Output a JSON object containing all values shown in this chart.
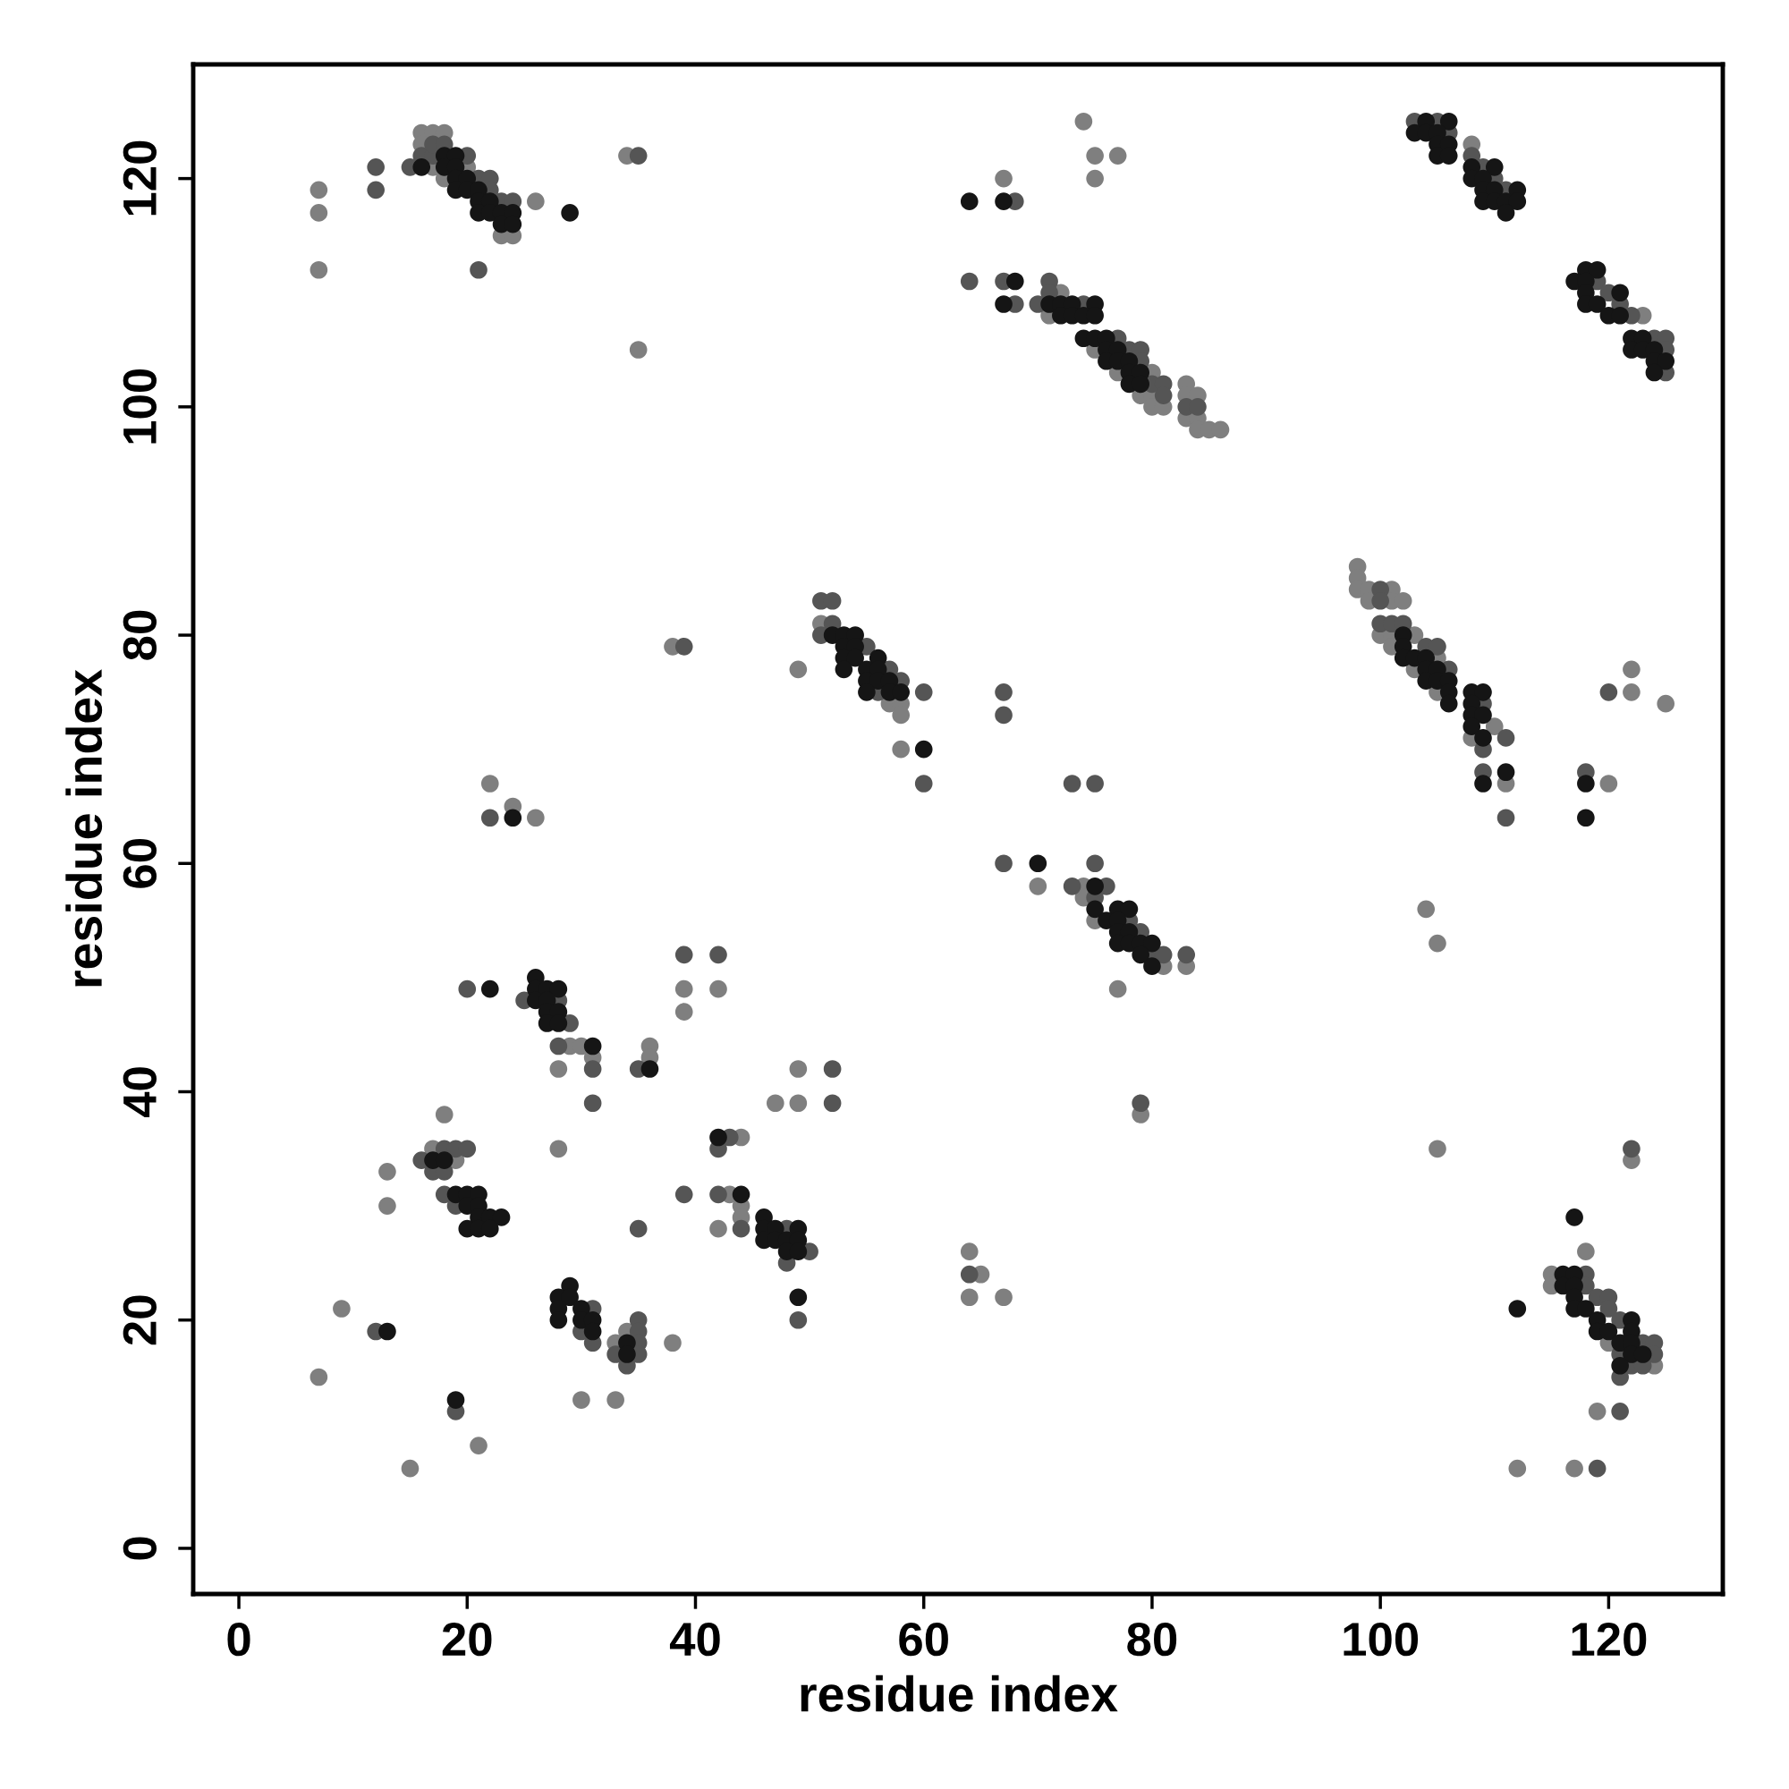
{
  "chart_data": {
    "type": "scatter",
    "xlabel": "residue index",
    "ylabel": "residue index",
    "xlim": [
      -4,
      130
    ],
    "ylim": [
      -4,
      130
    ],
    "xticks": [
      0,
      20,
      40,
      60,
      80,
      100,
      120
    ],
    "yticks": [
      0,
      20,
      40,
      60,
      80,
      100,
      120
    ],
    "marker": "circle",
    "series": [
      {
        "color": "#7f7f7f",
        "x": [
          7,
          7,
          7,
          16,
          17,
          18,
          16,
          17,
          20,
          18,
          23,
          24,
          26,
          34,
          35,
          74,
          75,
          77,
          75,
          67,
          72,
          71,
          75,
          77,
          80,
          83,
          79,
          80,
          83,
          84,
          80,
          81,
          83,
          84,
          84,
          85,
          86,
          108,
          123,
          98,
          98,
          98,
          99,
          101,
          99,
          101,
          102,
          100,
          101,
          103,
          101,
          105,
          103,
          105,
          110,
          108,
          111,
          122,
          122,
          125,
          120,
          104,
          105,
          51,
          49,
          57,
          58,
          58,
          58,
          38,
          22,
          24,
          26,
          70,
          74,
          74,
          75,
          81,
          83,
          77,
          39,
          42,
          39,
          29,
          30,
          31,
          28,
          36,
          36,
          49,
          47,
          49,
          18,
          28,
          17,
          19,
          13,
          13,
          44,
          43,
          44,
          44,
          42,
          34,
          33,
          38,
          9,
          7,
          30,
          33,
          21,
          15,
          64,
          65,
          64,
          67,
          79,
          105,
          122,
          118,
          115,
          115,
          120,
          124,
          119,
          112,
          117
        ],
        "values": [
          119,
          117,
          112,
          124,
          124,
          124,
          123,
          121,
          121,
          120,
          115,
          115,
          118,
          122,
          105,
          125,
          122,
          122,
          120,
          120,
          110,
          108,
          105,
          103,
          103,
          102,
          101,
          101,
          101,
          101,
          100,
          100,
          99,
          99,
          98,
          98,
          98,
          123,
          108,
          86,
          85,
          84,
          84,
          84,
          83,
          83,
          83,
          80,
          80,
          80,
          79,
          78,
          77,
          75,
          72,
          71,
          67,
          77,
          75,
          74,
          67,
          56,
          53,
          81,
          77,
          74,
          74,
          73,
          70,
          79,
          67,
          65,
          64,
          58,
          58,
          57,
          55,
          51,
          51,
          49,
          49,
          49,
          47,
          44,
          44,
          43,
          42,
          44,
          43,
          42,
          39,
          39,
          38,
          35,
          35,
          34,
          33,
          30,
          36,
          31,
          30,
          29,
          28,
          19,
          18,
          18,
          21,
          15,
          13,
          13,
          9,
          7,
          26,
          24,
          22,
          22,
          38,
          35,
          34,
          26,
          24,
          23,
          18,
          16,
          12,
          7,
          7
        ]
      },
      {
        "color": "#555555",
        "x": [
          12,
          12,
          15,
          16,
          17,
          20,
          17,
          18,
          21,
          22,
          22,
          23,
          24,
          21,
          35,
          68,
          64,
          67,
          71,
          71,
          68,
          70,
          74,
          77,
          78,
          79,
          79,
          80,
          81,
          81,
          83,
          84,
          103,
          105,
          106,
          108,
          109,
          110,
          111,
          119,
          120,
          121,
          122,
          124,
          125,
          125,
          125,
          100,
          100,
          100,
          101,
          102,
          104,
          105,
          106,
          109,
          111,
          109,
          109,
          111,
          120,
          118,
          51,
          52,
          52,
          51,
          55,
          57,
          58,
          56,
          60,
          60,
          39,
          67,
          67,
          22,
          73,
          75,
          67,
          75,
          73,
          76,
          75,
          78,
          79,
          80,
          81,
          83,
          39,
          42,
          20,
          25,
          28,
          29,
          28,
          31,
          31,
          35,
          52,
          52,
          18,
          19,
          20,
          16,
          17,
          18,
          18,
          19,
          43,
          42,
          39,
          42,
          44,
          35,
          48,
          50,
          48,
          49,
          31,
          30,
          31,
          35,
          35,
          35,
          33,
          35,
          34,
          12,
          19,
          64,
          79,
          122,
          118,
          118,
          119,
          120,
          120,
          121,
          123,
          124,
          121,
          124,
          122,
          123,
          121,
          121,
          119
        ],
        "values": [
          121,
          119,
          121,
          122,
          122,
          122,
          123,
          123,
          120,
          120,
          119,
          118,
          118,
          112,
          122,
          118,
          111,
          111,
          111,
          110,
          109,
          109,
          109,
          106,
          105,
          105,
          104,
          102,
          102,
          101,
          100,
          100,
          125,
          125,
          124,
          122,
          121,
          120,
          119,
          111,
          110,
          109,
          108,
          106,
          106,
          105,
          103,
          84,
          83,
          81,
          81,
          81,
          79,
          79,
          77,
          74,
          71,
          70,
          68,
          64,
          75,
          68,
          83,
          83,
          81,
          80,
          79,
          77,
          76,
          75,
          75,
          67,
          79,
          75,
          73,
          64,
          67,
          67,
          60,
          60,
          58,
          58,
          57,
          55,
          54,
          52,
          52,
          52,
          52,
          52,
          49,
          48,
          48,
          46,
          44,
          42,
          39,
          42,
          42,
          39,
          35,
          35,
          35,
          34,
          33,
          33,
          31,
          30,
          36,
          35,
          31,
          31,
          28,
          28,
          28,
          26,
          25,
          20,
          21,
          19,
          18,
          20,
          19,
          18,
          17,
          17,
          16,
          19,
          12,
          24,
          39,
          35,
          24,
          23,
          22,
          22,
          21,
          20,
          18,
          18,
          17,
          17,
          16,
          16,
          15,
          12,
          7
        ]
      },
      {
        "color": "#151515",
        "x": [
          16,
          18,
          19,
          18,
          19,
          19,
          20,
          19,
          20,
          21,
          21,
          22,
          21,
          22,
          23,
          24,
          23,
          24,
          29,
          64,
          67,
          68,
          67,
          71,
          72,
          73,
          75,
          72,
          73,
          74,
          75,
          74,
          75,
          76,
          76,
          77,
          76,
          77,
          78,
          78,
          79,
          78,
          79,
          104,
          106,
          103,
          104,
          105,
          105,
          106,
          105,
          106,
          108,
          110,
          108,
          109,
          109,
          110,
          112,
          109,
          110,
          111,
          112,
          111,
          118,
          119,
          117,
          118,
          118,
          121,
          118,
          119,
          120,
          121,
          122,
          123,
          122,
          123,
          124,
          124,
          125,
          124,
          102,
          102,
          102,
          103,
          104,
          104,
          105,
          104,
          105,
          106,
          106,
          108,
          109,
          106,
          108,
          108,
          109,
          108,
          109,
          111,
          109,
          118,
          118,
          52,
          53,
          54,
          53,
          54,
          53,
          54,
          56,
          53,
          55,
          56,
          55,
          56,
          57,
          55,
          57,
          58,
          60,
          24,
          70,
          75,
          75,
          77,
          78,
          76,
          77,
          77,
          78,
          77,
          78,
          79,
          80,
          79,
          80,
          22,
          26,
          26,
          27,
          28,
          26,
          27,
          27,
          28,
          27,
          28,
          31,
          36,
          17,
          18,
          19,
          20,
          21,
          20,
          21,
          21,
          22,
          23,
          20,
          21,
          22,
          42,
          44,
          46,
          46,
          47,
          49,
          46,
          47,
          48,
          49,
          48,
          49,
          49,
          29,
          28,
          29,
          28,
          30,
          28,
          30,
          31,
          31,
          34,
          34,
          13,
          19,
          117,
          116,
          117,
          116,
          117,
          117,
          112,
          117,
          118,
          119,
          122,
          119,
          120,
          122,
          121,
          122,
          122,
          123,
          121
        ],
        "values": [
          121,
          122,
          122,
          121,
          121,
          120,
          120,
          119,
          119,
          119,
          118,
          118,
          117,
          117,
          117,
          117,
          116,
          116,
          117,
          118,
          118,
          111,
          109,
          109,
          109,
          109,
          109,
          108,
          108,
          108,
          108,
          106,
          106,
          106,
          105,
          105,
          104,
          104,
          104,
          103,
          103,
          102,
          102,
          125,
          125,
          124,
          124,
          124,
          123,
          123,
          122,
          122,
          121,
          121,
          120,
          120,
          119,
          119,
          119,
          118,
          118,
          118,
          118,
          117,
          112,
          112,
          111,
          111,
          110,
          110,
          109,
          109,
          108,
          108,
          106,
          106,
          105,
          105,
          105,
          104,
          104,
          103,
          80,
          79,
          78,
          78,
          78,
          77,
          77,
          76,
          76,
          76,
          75,
          75,
          75,
          74,
          74,
          73,
          73,
          72,
          71,
          68,
          67,
          67,
          64,
          80,
          80,
          80,
          79,
          79,
          78,
          78,
          78,
          77,
          77,
          77,
          76,
          76,
          76,
          75,
          75,
          75,
          70,
          64,
          60,
          58,
          56,
          56,
          56,
          55,
          55,
          54,
          54,
          53,
          53,
          53,
          53,
          52,
          51,
          49,
          50,
          49,
          49,
          49,
          48,
          48,
          47,
          47,
          46,
          46,
          44,
          42,
          34,
          34,
          31,
          31,
          31,
          30,
          30,
          29,
          29,
          29,
          28,
          28,
          28,
          36,
          31,
          29,
          28,
          28,
          28,
          27,
          27,
          27,
          27,
          26,
          26,
          22,
          23,
          22,
          22,
          21,
          21,
          20,
          20,
          20,
          19,
          18,
          17,
          19,
          13,
          29,
          24,
          24,
          23,
          23,
          22,
          21,
          21,
          21,
          20,
          20,
          19,
          19,
          19,
          18,
          18,
          17,
          17,
          16
        ]
      }
    ]
  }
}
